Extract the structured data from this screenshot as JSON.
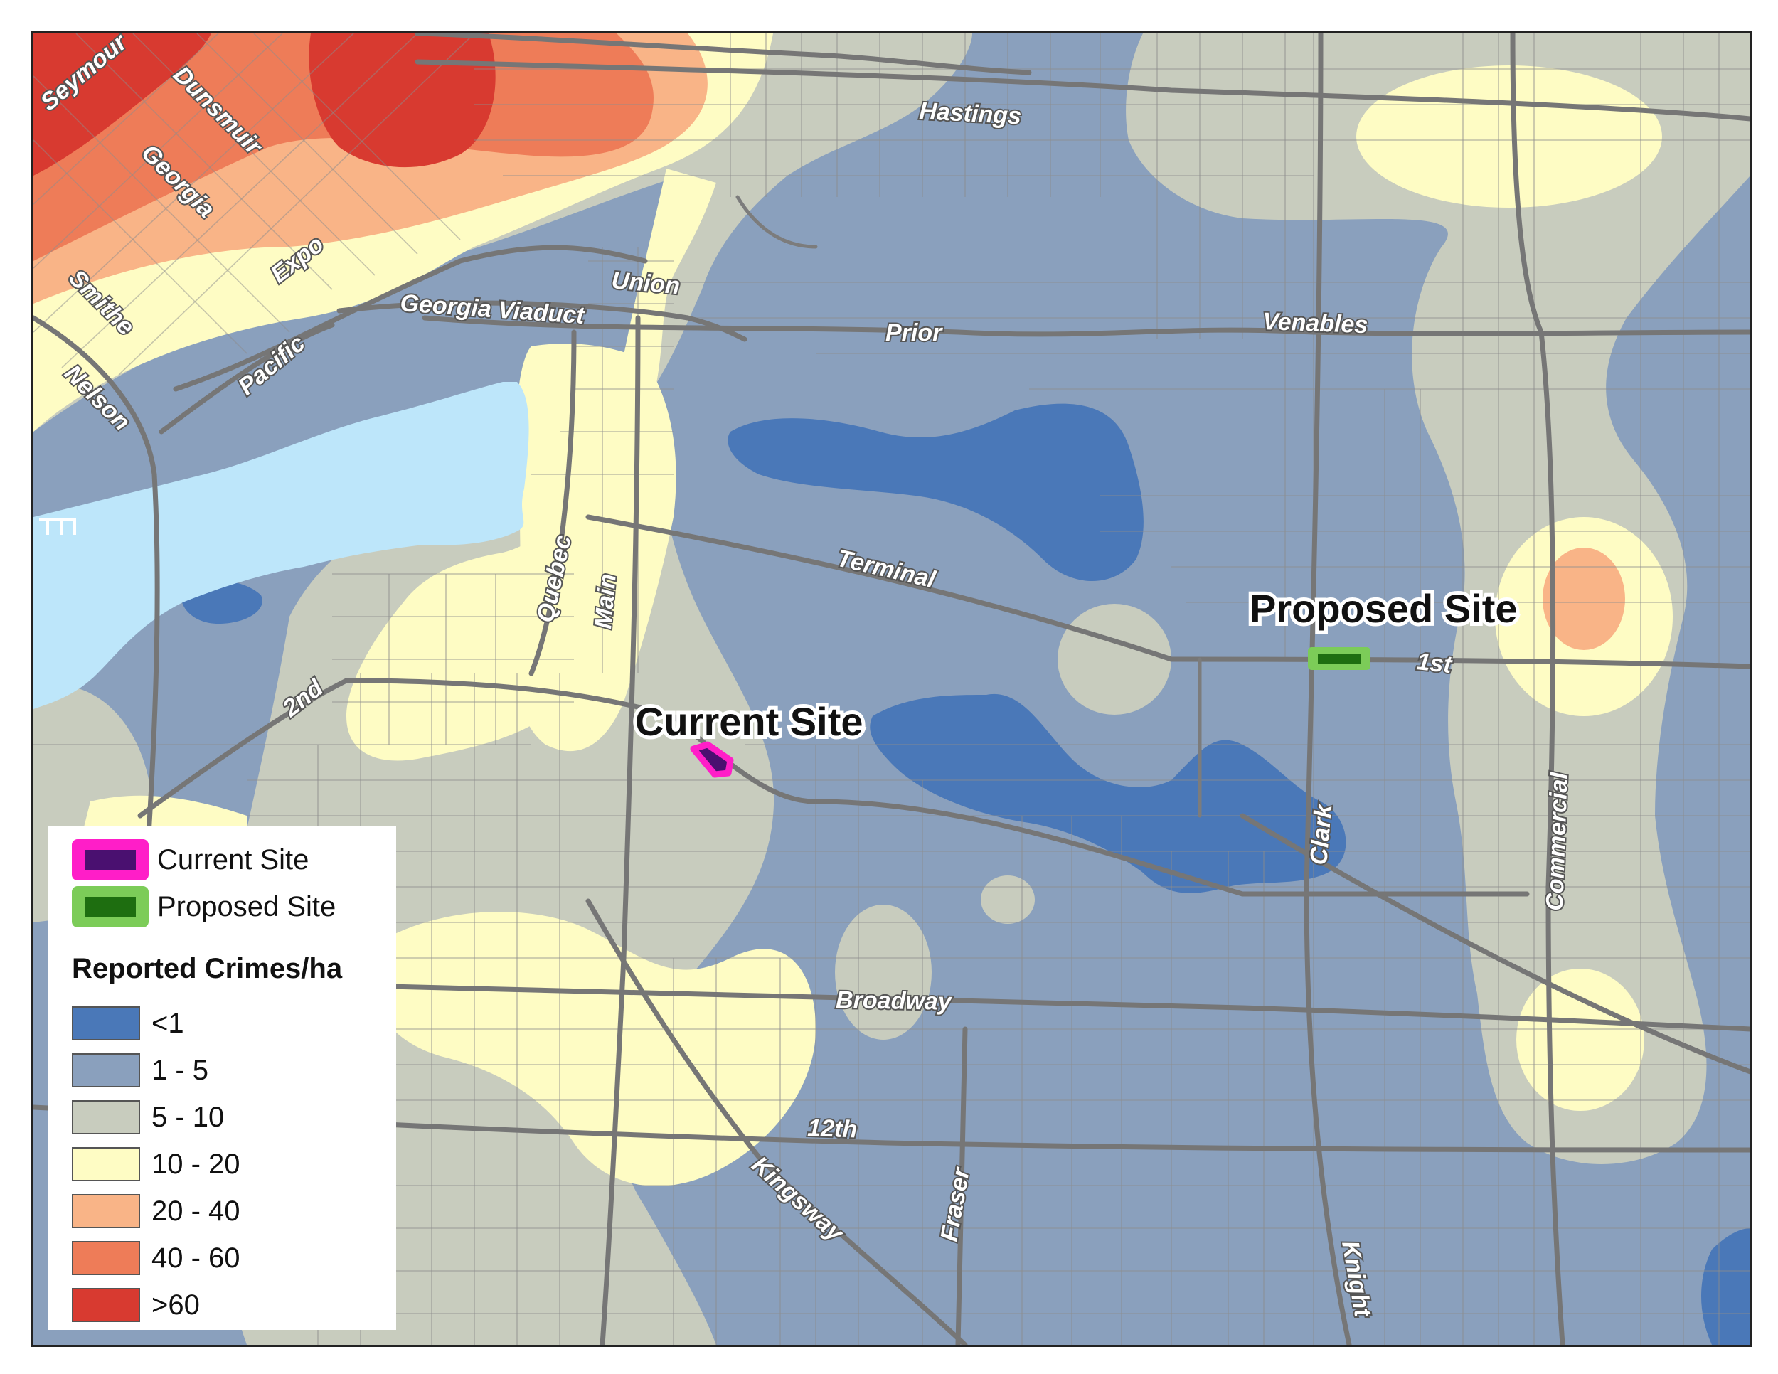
{
  "legend": {
    "sites": [
      {
        "label": "Current Site",
        "fill": "#4a1070",
        "outline": "#ff1ec8"
      },
      {
        "label": "Proposed Site",
        "fill": "#1e6e10",
        "outline": "#7ccc58"
      }
    ],
    "title": "Reported Crimes/ha",
    "classes": [
      {
        "label": "<1",
        "color": "#4a78b8"
      },
      {
        "label": "1 - 5",
        "color": "#8aa0bd"
      },
      {
        "label": "5 - 10",
        "color": "#c8ccbe"
      },
      {
        "label": "10 - 20",
        "color": "#fefcc4"
      },
      {
        "label": "20 - 40",
        "color": "#f9b487"
      },
      {
        "label": "40 - 60",
        "color": "#ee7c58"
      },
      {
        "label": ">60",
        "color": "#d83a30"
      }
    ]
  },
  "map": {
    "water_color": "#bde6fa",
    "site_labels": {
      "current": "Current Site",
      "proposed": "Proposed Site"
    },
    "streets": {
      "seymour": "Seymour",
      "dunsmuir": "Dunsmuir",
      "georgia": "Georgia",
      "expo": "Expo",
      "smithe": "Smithe",
      "nelson": "Nelson",
      "pacific": "Pacific",
      "georgia_viaduct": "Georgia Viaduct",
      "union": "Union",
      "hastings": "Hastings",
      "prior": "Prior",
      "venables": "Venables",
      "terminal": "Terminal",
      "quebec": "Quebec",
      "main": "Main",
      "second": "2nd",
      "first": "1st",
      "clark": "Clark",
      "commercial": "Commercial",
      "broadway": "Broadway",
      "twelfth": "12th",
      "kingsway": "Kingsway",
      "fraser": "Fraser",
      "knight": "Knight"
    }
  }
}
